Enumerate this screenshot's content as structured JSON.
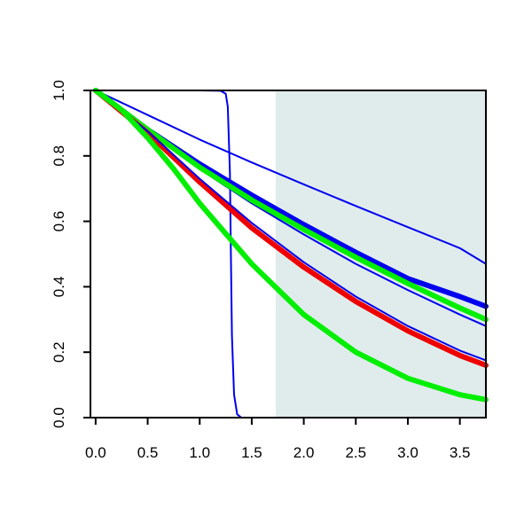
{
  "chart_data": {
    "type": "line",
    "title": "",
    "xlabel": "",
    "ylabel": "",
    "xlim": [
      -0.05,
      3.75
    ],
    "ylim": [
      0.0,
      1.0
    ],
    "x_ticks": [
      0.0,
      0.5,
      1.0,
      1.5,
      2.0,
      2.5,
      3.0,
      3.5
    ],
    "x_tick_labels": [
      "0.0",
      "0.5",
      "1.0",
      "1.5",
      "2.0",
      "2.5",
      "3.0",
      "3.5"
    ],
    "y_ticks": [
      0.0,
      0.2,
      0.4,
      0.6,
      0.8,
      1.0
    ],
    "y_tick_labels": [
      "0.0",
      "0.2",
      "0.4",
      "0.6",
      "0.8",
      "1.0"
    ],
    "shaded_region": {
      "x_from": 1.73,
      "x_to": 3.75,
      "color": "#e0ecec"
    },
    "legend": "none",
    "grid": false,
    "series": [
      {
        "color": "#0000ee",
        "width": "thin",
        "x": [
          0.0,
          1.0,
          1.2,
          1.25,
          1.27,
          1.29,
          1.3,
          1.31,
          1.33,
          1.36,
          1.4,
          1.6,
          3.75
        ],
        "y": [
          1.0,
          1.0,
          0.999,
          0.99,
          0.95,
          0.75,
          0.5,
          0.25,
          0.07,
          0.01,
          0.0,
          0.0,
          0.0
        ]
      },
      {
        "color": "#0000ee",
        "width": "thin",
        "x": [
          0.0,
          0.5,
          1.0,
          1.5,
          2.0,
          2.5,
          3.0,
          3.5,
          3.75
        ],
        "y": [
          1.0,
          0.925,
          0.85,
          0.78,
          0.713,
          0.647,
          0.582,
          0.518,
          0.47
        ]
      },
      {
        "color": "#0000ee",
        "width": "thin",
        "x": [
          0.0,
          0.5,
          1.0,
          1.5,
          2.0,
          2.5,
          3.0,
          3.5,
          3.75
        ],
        "y": [
          1.0,
          0.875,
          0.76,
          0.655,
          0.56,
          0.47,
          0.39,
          0.315,
          0.28
        ]
      },
      {
        "color": "#0000ee",
        "width": "thick",
        "x": [
          0.0,
          0.5,
          1.0,
          1.5,
          2.0,
          2.5,
          3.0,
          3.5,
          3.75
        ],
        "y": [
          1.0,
          0.88,
          0.775,
          0.68,
          0.59,
          0.505,
          0.425,
          0.37,
          0.34
        ]
      },
      {
        "color": "#00ee00",
        "width": "thick",
        "x": [
          0.0,
          0.5,
          1.0,
          1.5,
          2.0,
          2.5,
          3.0,
          3.5,
          3.75
        ],
        "y": [
          1.0,
          0.88,
          0.765,
          0.665,
          0.575,
          0.49,
          0.41,
          0.335,
          0.3
        ]
      },
      {
        "color": "#ee0000",
        "width": "thick",
        "x": [
          0.0,
          0.5,
          1.0,
          1.5,
          2.0,
          2.5,
          3.0,
          3.5,
          3.75
        ],
        "y": [
          1.0,
          0.87,
          0.72,
          0.58,
          0.46,
          0.355,
          0.265,
          0.19,
          0.16
        ]
      },
      {
        "color": "#0000ee",
        "width": "thin",
        "x": [
          0.0,
          0.5,
          1.0,
          1.5,
          2.0,
          2.5,
          3.0,
          3.5,
          3.75
        ],
        "y": [
          1.0,
          0.875,
          0.73,
          0.595,
          0.475,
          0.37,
          0.28,
          0.205,
          0.175
        ]
      },
      {
        "color": "#00ee00",
        "width": "thick",
        "x": [
          0.0,
          0.25,
          0.5,
          0.75,
          1.0,
          1.5,
          2.0,
          2.5,
          3.0,
          3.5,
          3.75
        ],
        "y": [
          1.0,
          0.94,
          0.855,
          0.76,
          0.655,
          0.47,
          0.315,
          0.2,
          0.12,
          0.07,
          0.055
        ]
      }
    ]
  }
}
